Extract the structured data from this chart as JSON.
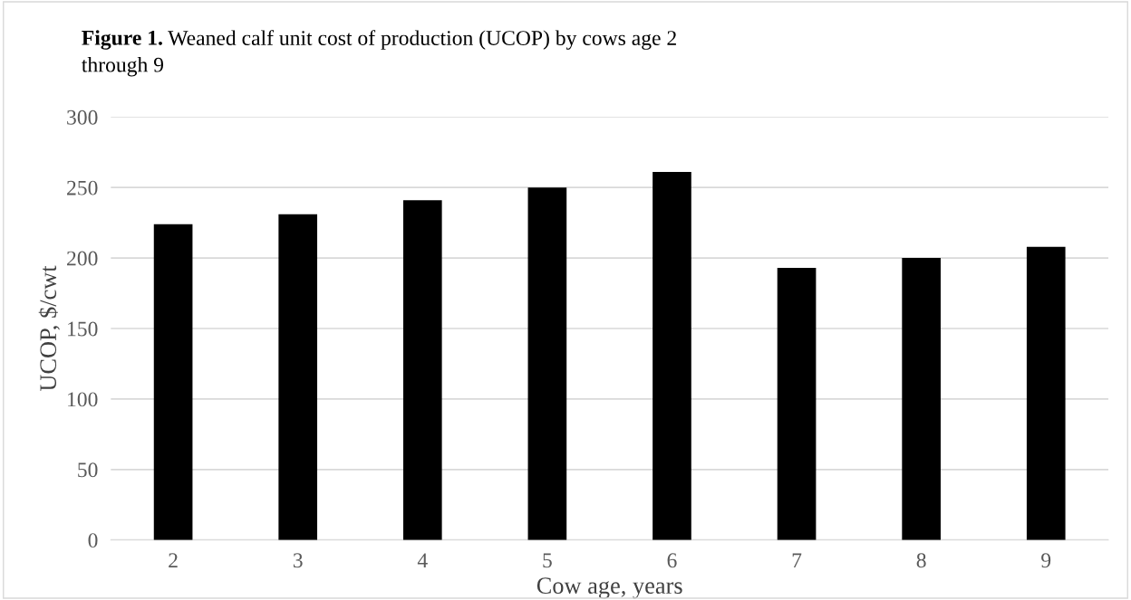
{
  "chart_data": {
    "type": "bar",
    "title": "Figure 1. Weaned calf unit cost of production (UCOP) by cows age 2 through 9",
    "xlabel": "Cow age, years",
    "ylabel": "UCOP, $/cwt",
    "categories": [
      "2",
      "3",
      "4",
      "5",
      "6",
      "7",
      "8",
      "9"
    ],
    "values": [
      224,
      231,
      241,
      250,
      261,
      193,
      200,
      208
    ],
    "color": "#000000",
    "ylim": [
      0,
      300
    ],
    "yticks": [
      0,
      50,
      100,
      150,
      200,
      250,
      300
    ],
    "grid": "y",
    "legend": false
  }
}
